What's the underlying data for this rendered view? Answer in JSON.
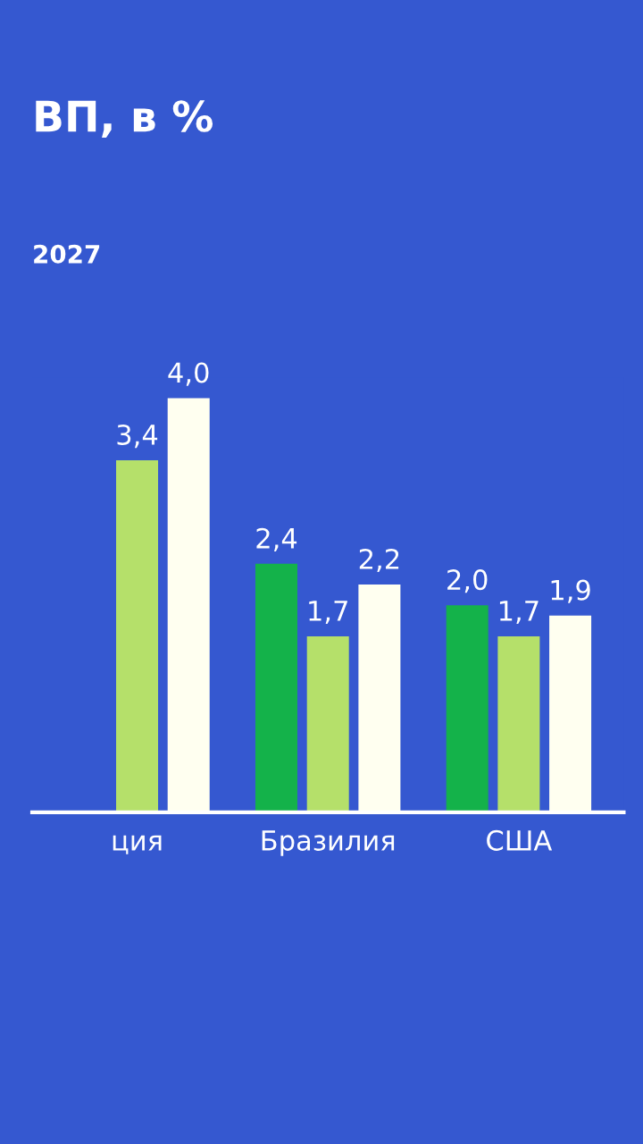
{
  "chart_data": {
    "type": "bar",
    "title": "ВП, в %",
    "subtitle": "2027",
    "categories": [
      "ция",
      "Бразилия",
      "США"
    ],
    "series": [
      {
        "color": "#14b24a",
        "values": [
          null,
          2.4,
          2.0
        ],
        "value_labels": [
          null,
          "2,4",
          "2,0"
        ]
      },
      {
        "color": "#b5e06a",
        "values": [
          3.4,
          1.7,
          1.7
        ],
        "value_labels": [
          "3,4",
          "1,7",
          "1,7"
        ]
      },
      {
        "color": "#fffff0",
        "values": [
          4.0,
          2.2,
          1.9
        ],
        "value_labels": [
          "4,0",
          "2,2",
          "1,9"
        ]
      }
    ],
    "grid": false,
    "tick_labels": "x"
  }
}
